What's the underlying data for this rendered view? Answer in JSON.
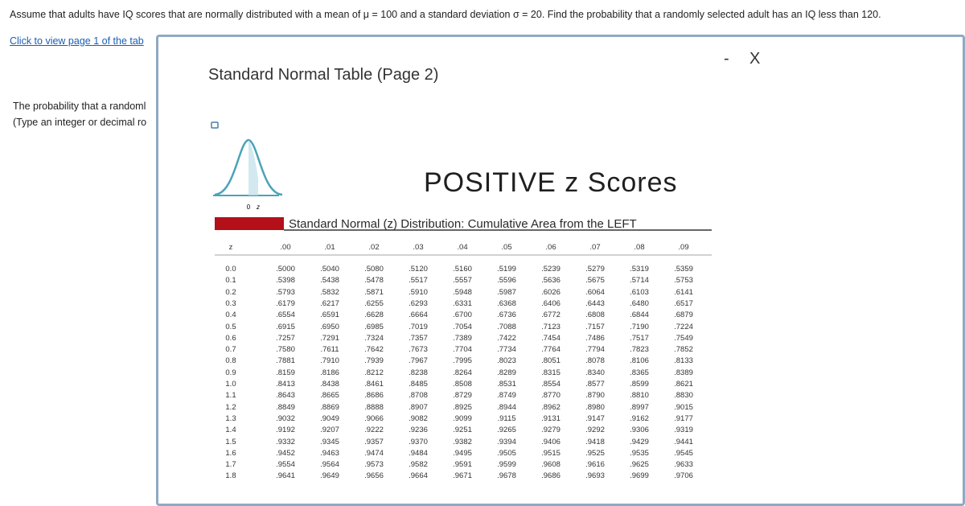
{
  "question": "Assume that adults have IQ scores that are normally distributed with a mean of μ = 100 and a standard deviation σ = 20. Find the probability that a randomly selected adult has an IQ less than 120.",
  "link": "Click to view page 1 of the tab",
  "answer_prompt": [
    "The probability that a randoml",
    "(Type an integer or decimal ro"
  ],
  "popup": {
    "title": "Standard Normal Table (Page 2)",
    "minimize": "-",
    "close": "X"
  },
  "figure": {
    "heading": "POSITIVE z Scores",
    "curve_labels": [
      "0",
      "z"
    ],
    "subtitle": "Standard Normal (z) Distribution: Cumulative Area from the LEFT"
  },
  "table": {
    "header": [
      "z",
      ".00",
      ".01",
      ".02",
      ".03",
      ".04",
      ".05",
      ".06",
      ".07",
      ".08",
      ".09"
    ],
    "rows": [
      [
        "0.0",
        ".5000",
        ".5040",
        ".5080",
        ".5120",
        ".5160",
        ".5199",
        ".5239",
        ".5279",
        ".5319",
        ".5359"
      ],
      [
        "0.1",
        ".5398",
        ".5438",
        ".5478",
        ".5517",
        ".5557",
        ".5596",
        ".5636",
        ".5675",
        ".5714",
        ".5753"
      ],
      [
        "0.2",
        ".5793",
        ".5832",
        ".5871",
        ".5910",
        ".5948",
        ".5987",
        ".6026",
        ".6064",
        ".6103",
        ".6141"
      ],
      [
        "0.3",
        ".6179",
        ".6217",
        ".6255",
        ".6293",
        ".6331",
        ".6368",
        ".6406",
        ".6443",
        ".6480",
        ".6517"
      ],
      [
        "0.4",
        ".6554",
        ".6591",
        ".6628",
        ".6664",
        ".6700",
        ".6736",
        ".6772",
        ".6808",
        ".6844",
        ".6879"
      ],
      [
        "0.5",
        ".6915",
        ".6950",
        ".6985",
        ".7019",
        ".7054",
        ".7088",
        ".7123",
        ".7157",
        ".7190",
        ".7224"
      ],
      [
        "0.6",
        ".7257",
        ".7291",
        ".7324",
        ".7357",
        ".7389",
        ".7422",
        ".7454",
        ".7486",
        ".7517",
        ".7549"
      ],
      [
        "0.7",
        ".7580",
        ".7611",
        ".7642",
        ".7673",
        ".7704",
        ".7734",
        ".7764",
        ".7794",
        ".7823",
        ".7852"
      ],
      [
        "0.8",
        ".7881",
        ".7910",
        ".7939",
        ".7967",
        ".7995",
        ".8023",
        ".8051",
        ".8078",
        ".8106",
        ".8133"
      ],
      [
        "0.9",
        ".8159",
        ".8186",
        ".8212",
        ".8238",
        ".8264",
        ".8289",
        ".8315",
        ".8340",
        ".8365",
        ".8389"
      ],
      [
        "1.0",
        ".8413",
        ".8438",
        ".8461",
        ".8485",
        ".8508",
        ".8531",
        ".8554",
        ".8577",
        ".8599",
        ".8621"
      ],
      [
        "1.1",
        ".8643",
        ".8665",
        ".8686",
        ".8708",
        ".8729",
        ".8749",
        ".8770",
        ".8790",
        ".8810",
        ".8830"
      ],
      [
        "1.2",
        ".8849",
        ".8869",
        ".8888",
        ".8907",
        ".8925",
        ".8944",
        ".8962",
        ".8980",
        ".8997",
        ".9015"
      ],
      [
        "1.3",
        ".9032",
        ".9049",
        ".9066",
        ".9082",
        ".9099",
        ".9115",
        ".9131",
        ".9147",
        ".9162",
        ".9177"
      ],
      [
        "1.4",
        ".9192",
        ".9207",
        ".9222",
        ".9236",
        ".9251",
        ".9265",
        ".9279",
        ".9292",
        ".9306",
        ".9319"
      ],
      [
        "1.5",
        ".9332",
        ".9345",
        ".9357",
        ".9370",
        ".9382",
        ".9394",
        ".9406",
        ".9418",
        ".9429",
        ".9441"
      ],
      [
        "1.6",
        ".9452",
        ".9463",
        ".9474",
        ".9484",
        ".9495",
        ".9505",
        ".9515",
        ".9525",
        ".9535",
        ".9545"
      ],
      [
        "1.7",
        ".9554",
        ".9564",
        ".9573",
        ".9582",
        ".9591",
        ".9599",
        ".9608",
        ".9616",
        ".9625",
        ".9633"
      ],
      [
        "1.8",
        ".9641",
        ".9649",
        ".9656",
        ".9664",
        ".9671",
        ".9678",
        ".9686",
        ".9693",
        ".9699",
        ".9706"
      ]
    ]
  }
}
